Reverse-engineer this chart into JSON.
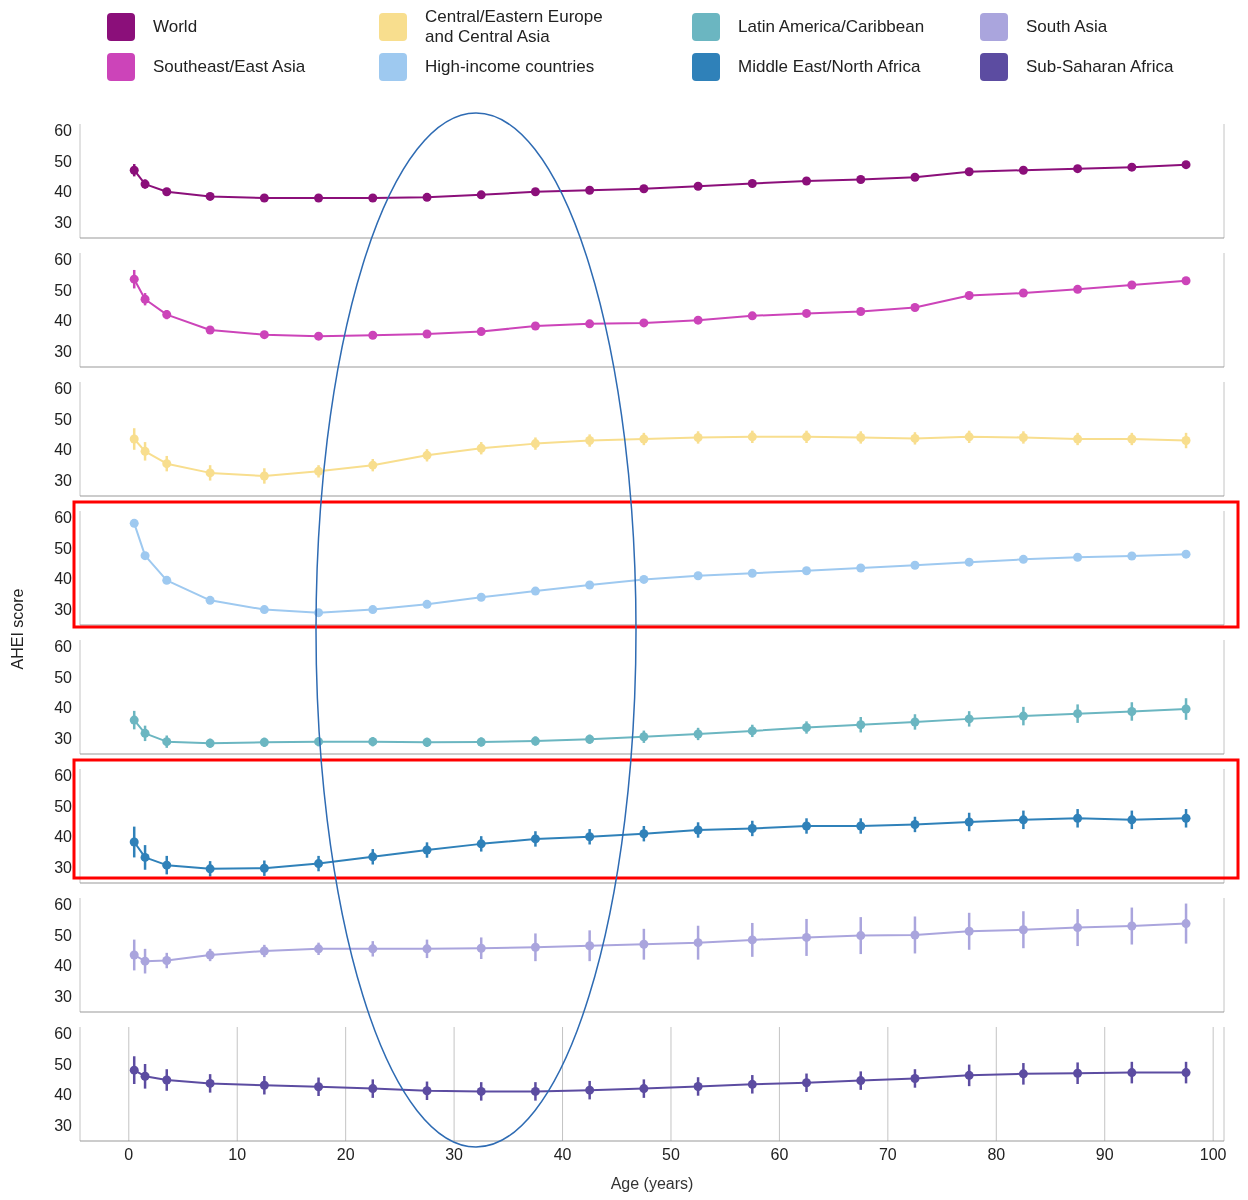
{
  "chart_data": [
    {
      "type": "line",
      "legend": "top",
      "grid": "x",
      "marker": "circle",
      "tick_labels": "y",
      "x": [
        0.5,
        1.5,
        3.5,
        7.5,
        12.5,
        17.5,
        22.5,
        27.5,
        32.5,
        37.5,
        42.5,
        47.5,
        52.5,
        57.5,
        62.5,
        67.5,
        72.5,
        77.5,
        82.5,
        87.5,
        92.5,
        97.5
      ],
      "xlim": [
        -4.5,
        101
      ],
      "xticks": [
        0,
        10,
        20,
        30,
        40,
        50,
        60,
        70,
        80,
        90,
        100
      ],
      "ylim": [
        25,
        62
      ],
      "yticks": [
        30,
        40,
        50,
        60
      ],
      "series": [
        {
          "name": "World",
          "color": "#8b0f7a",
          "values": [
            47,
            42.5,
            40,
            38.5,
            38,
            38,
            38,
            38.2,
            39,
            40,
            40.5,
            41,
            41.8,
            42.7,
            43.5,
            44,
            44.7,
            46.5,
            47,
            47.5,
            48,
            48.8
          ],
          "errors": [
            2,
            1.5,
            1,
            null,
            null,
            null,
            null,
            null,
            null,
            null,
            null,
            null,
            null,
            null,
            null,
            null,
            null,
            null,
            null,
            null,
            null,
            null
          ]
        }
      ]
    },
    {
      "type": "line",
      "grid": "x",
      "marker": "circle",
      "tick_labels": "y",
      "x": [
        0.5,
        1.5,
        3.5,
        7.5,
        12.5,
        17.5,
        22.5,
        27.5,
        32.5,
        37.5,
        42.5,
        47.5,
        52.5,
        57.5,
        62.5,
        67.5,
        72.5,
        77.5,
        82.5,
        87.5,
        92.5,
        97.5
      ],
      "xlim": [
        -4.5,
        101
      ],
      "xticks": [
        0,
        10,
        20,
        30,
        40,
        50,
        60,
        70,
        80,
        90,
        100
      ],
      "ylim": [
        25,
        62
      ],
      "yticks": [
        30,
        40,
        50,
        60
      ],
      "series": [
        {
          "name": "Southeast/East Asia",
          "color": "#cc44b9",
          "values": [
            53.5,
            47,
            42,
            37,
            35.5,
            35,
            35.3,
            35.7,
            36.5,
            38.3,
            39,
            39.3,
            40.2,
            41.6,
            42.4,
            43,
            44.3,
            48.2,
            49,
            50.2,
            51.6,
            53
          ],
          "errors": [
            3,
            2,
            1.5,
            1,
            null,
            null,
            null,
            null,
            null,
            null,
            null,
            null,
            null,
            null,
            null,
            null,
            null,
            null,
            null,
            null,
            null,
            null
          ]
        }
      ]
    },
    {
      "type": "line",
      "grid": "x",
      "marker": "circle",
      "tick_labels": "y",
      "x": [
        0.5,
        1.5,
        3.5,
        7.5,
        12.5,
        17.5,
        22.5,
        27.5,
        32.5,
        37.5,
        42.5,
        47.5,
        52.5,
        57.5,
        62.5,
        67.5,
        72.5,
        77.5,
        82.5,
        87.5,
        92.5,
        97.5
      ],
      "xlim": [
        -4.5,
        101
      ],
      "xticks": [
        0,
        10,
        20,
        30,
        40,
        50,
        60,
        70,
        80,
        90,
        100
      ],
      "ylim": [
        25,
        62
      ],
      "yticks": [
        30,
        40,
        50,
        60
      ],
      "series": [
        {
          "name": "Central/Eastern Europe and Central Asia",
          "color": "#f8de8e",
          "values": [
            43.5,
            39.5,
            35.5,
            32.5,
            31.5,
            33,
            35,
            38.2,
            40.5,
            42,
            43,
            43.5,
            44,
            44.2,
            44.2,
            44,
            43.7,
            44.2,
            44,
            43.5,
            43.5,
            43
          ],
          "errors": [
            3.5,
            3,
            2.5,
            2.5,
            2.5,
            2,
            2,
            2,
            2,
            2,
            2,
            2,
            2,
            2,
            2,
            2,
            2,
            2,
            2,
            2,
            2,
            2.5
          ]
        }
      ]
    },
    {
      "type": "line",
      "grid": "x",
      "marker": "circle",
      "tick_labels": "y",
      "ylabel": "AHEI score",
      "x": [
        0.5,
        1.5,
        3.5,
        7.5,
        12.5,
        17.5,
        22.5,
        27.5,
        32.5,
        37.5,
        42.5,
        47.5,
        52.5,
        57.5,
        62.5,
        67.5,
        72.5,
        77.5,
        82.5,
        87.5,
        92.5,
        97.5
      ],
      "xlim": [
        -4.5,
        101
      ],
      "xticks": [
        0,
        10,
        20,
        30,
        40,
        50,
        60,
        70,
        80,
        90,
        100
      ],
      "ylim": [
        25,
        62
      ],
      "yticks": [
        30,
        40,
        50,
        60
      ],
      "series": [
        {
          "name": "High-income countries",
          "color": "#9ec9f0",
          "values": [
            58,
            47.5,
            39.5,
            33,
            30,
            29,
            30,
            31.7,
            34,
            36,
            38,
            39.8,
            41,
            41.8,
            42.6,
            43.5,
            44.4,
            45.4,
            46.3,
            47,
            47.4,
            48
          ]
        }
      ]
    },
    {
      "type": "line",
      "grid": "x",
      "marker": "circle",
      "tick_labels": "y",
      "x": [
        0.5,
        1.5,
        3.5,
        7.5,
        12.5,
        17.5,
        22.5,
        27.5,
        32.5,
        37.5,
        42.5,
        47.5,
        52.5,
        57.5,
        62.5,
        67.5,
        72.5,
        77.5,
        82.5,
        87.5,
        92.5,
        97.5
      ],
      "xlim": [
        -4.5,
        101
      ],
      "xticks": [
        0,
        10,
        20,
        30,
        40,
        50,
        60,
        70,
        80,
        90,
        100
      ],
      "ylim": [
        25,
        62
      ],
      "yticks": [
        30,
        40,
        50,
        60
      ],
      "series": [
        {
          "name": "Latin America/Caribbean",
          "color": "#6bb6c1",
          "values": [
            36,
            31.7,
            29,
            28.5,
            28.8,
            29,
            29,
            28.8,
            28.9,
            29.2,
            29.8,
            30.6,
            31.5,
            32.5,
            33.6,
            34.5,
            35.4,
            36.4,
            37.3,
            38.1,
            38.8,
            39.6
          ],
          "errors": [
            3,
            2.5,
            2,
            1.5,
            1.5,
            1.5,
            1.5,
            1.5,
            1.5,
            1.5,
            1.5,
            2,
            2,
            2,
            2,
            2.5,
            2.5,
            2.5,
            3,
            3,
            3,
            3.5
          ]
        }
      ]
    },
    {
      "type": "line",
      "grid": "x",
      "marker": "circle",
      "tick_labels": "y",
      "x": [
        0.5,
        1.5,
        3.5,
        7.5,
        12.5,
        17.5,
        22.5,
        27.5,
        32.5,
        37.5,
        42.5,
        47.5,
        52.5,
        57.5,
        62.5,
        67.5,
        72.5,
        77.5,
        82.5,
        87.5,
        92.5,
        97.5
      ],
      "xlim": [
        -4.5,
        101
      ],
      "xticks": [
        0,
        10,
        20,
        30,
        40,
        50,
        60,
        70,
        80,
        90,
        100
      ],
      "ylim": [
        25,
        62
      ],
      "yticks": [
        30,
        40,
        50,
        60
      ],
      "series": [
        {
          "name": "Middle East/North Africa",
          "color": "#2f81b9",
          "values": [
            38.3,
            33.3,
            30.8,
            29.6,
            29.8,
            31.3,
            33.5,
            35.7,
            37.7,
            39.3,
            40,
            41,
            42.2,
            42.7,
            43.5,
            43.5,
            44,
            44.8,
            45.5,
            46,
            45.5,
            46
          ],
          "errors": [
            5,
            4,
            3,
            2.5,
            2.5,
            2.5,
            2.5,
            2.5,
            2.5,
            2.5,
            2.5,
            2.5,
            2.5,
            2.5,
            2.5,
            2.5,
            2.5,
            3,
            3,
            3,
            3,
            3
          ]
        }
      ]
    },
    {
      "type": "line",
      "grid": "x",
      "marker": "circle",
      "tick_labels": "y",
      "x": [
        0.5,
        1.5,
        3.5,
        7.5,
        12.5,
        17.5,
        22.5,
        27.5,
        32.5,
        37.5,
        42.5,
        47.5,
        52.5,
        57.5,
        62.5,
        67.5,
        72.5,
        77.5,
        82.5,
        87.5,
        92.5,
        97.5
      ],
      "xlim": [
        -4.5,
        101
      ],
      "xticks": [
        0,
        10,
        20,
        30,
        40,
        50,
        60,
        70,
        80,
        90,
        100
      ],
      "ylim": [
        25,
        62
      ],
      "yticks": [
        30,
        40,
        50,
        60
      ],
      "series": [
        {
          "name": "South Asia",
          "color": "#aaa5dd",
          "values": [
            43.5,
            41.5,
            41.7,
            43.5,
            44.8,
            45.5,
            45.5,
            45.5,
            45.7,
            46,
            46.5,
            47,
            47.5,
            48.4,
            49.2,
            49.8,
            50,
            51.2,
            51.7,
            52.4,
            52.9,
            53.7
          ],
          "errors": [
            5,
            4,
            2.5,
            2,
            2,
            2,
            2.5,
            3,
            3.5,
            4.5,
            5,
            5,
            5.5,
            5.5,
            6,
            6,
            6,
            6,
            6,
            6,
            6,
            6.5
          ]
        }
      ]
    },
    {
      "type": "line",
      "grid": "x",
      "marker": "circle",
      "xlabel": "Age (years)",
      "x": [
        0.5,
        1.5,
        3.5,
        7.5,
        12.5,
        17.5,
        22.5,
        27.5,
        32.5,
        37.5,
        42.5,
        47.5,
        52.5,
        57.5,
        62.5,
        67.5,
        72.5,
        77.5,
        82.5,
        87.5,
        92.5,
        97.5
      ],
      "xlim": [
        -4.5,
        101
      ],
      "xticks": [
        0,
        10,
        20,
        30,
        40,
        50,
        60,
        70,
        80,
        90,
        100
      ],
      "ylim": [
        25,
        62
      ],
      "yticks": [
        30,
        40,
        50,
        60
      ],
      "series": [
        {
          "name": "Sub-Saharan Africa",
          "color": "#5c4ca1",
          "values": [
            48,
            46,
            44.8,
            43.7,
            43.1,
            42.6,
            42,
            41.3,
            41.1,
            41.1,
            41.5,
            42,
            42.7,
            43.4,
            43.9,
            44.6,
            45.3,
            46.3,
            46.8,
            47,
            47.2,
            47.2
          ],
          "errors": [
            4.5,
            4,
            3.5,
            3,
            3,
            3,
            3,
            3,
            3,
            3,
            3,
            3,
            3,
            3,
            3,
            3,
            3,
            3.5,
            3.5,
            3.5,
            3.5,
            3.5
          ]
        }
      ]
    }
  ]
}
